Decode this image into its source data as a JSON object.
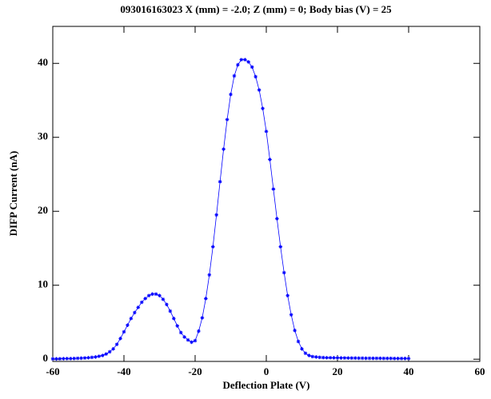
{
  "chart_data": {
    "type": "line",
    "title": "093016163023   X (mm) = -2.0;  Z (mm) = 0;  Body bias (V) = 25",
    "x_label": "Deflection Plate (V)",
    "y_label": "DIFP Current (nA)",
    "x": [
      -60,
      -59,
      -58,
      -57,
      -56,
      -55,
      -54,
      -53,
      -52,
      -51,
      -50,
      -49,
      -48,
      -47,
      -46,
      -45,
      -44,
      -43,
      -42,
      -41,
      -40,
      -39,
      -38,
      -37,
      -36,
      -35,
      -34,
      -33,
      -32,
      -31,
      -30,
      -29,
      -28,
      -27,
      -26,
      -25,
      -24,
      -23,
      -22,
      -21,
      -20,
      -19,
      -18,
      -17,
      -16,
      -15,
      -14,
      -13,
      -12,
      -11,
      -10,
      -9,
      -8,
      -7,
      -6,
      -5,
      -4,
      -3,
      -2,
      -1,
      0,
      1,
      2,
      3,
      4,
      5,
      6,
      7,
      8,
      9,
      10,
      11,
      12,
      13,
      14,
      15,
      16,
      17,
      18,
      19,
      20,
      21,
      22,
      23,
      24,
      25,
      26,
      27,
      28,
      29,
      30,
      31,
      32,
      33,
      34,
      35,
      36,
      37,
      38,
      39,
      40
    ],
    "series": [
      {
        "name": "DIFP",
        "color": "#0000ff",
        "values": [
          0.05,
          0.05,
          0.06,
          0.07,
          0.08,
          0.09,
          0.1,
          0.12,
          0.14,
          0.17,
          0.2,
          0.25,
          0.3,
          0.4,
          0.5,
          0.7,
          1.0,
          1.4,
          2.0,
          2.8,
          3.7,
          4.6,
          5.5,
          6.3,
          7.0,
          7.7,
          8.2,
          8.6,
          8.8,
          8.8,
          8.6,
          8.1,
          7.4,
          6.5,
          5.5,
          4.5,
          3.6,
          3.0,
          2.6,
          2.3,
          2.5,
          3.8,
          5.6,
          8.2,
          11.4,
          15.2,
          19.5,
          24.0,
          28.4,
          32.4,
          35.8,
          38.3,
          39.8,
          40.5,
          40.5,
          40.2,
          39.5,
          38.2,
          36.4,
          33.9,
          30.8,
          27.0,
          23.0,
          19.0,
          15.2,
          11.7,
          8.6,
          6.0,
          3.9,
          2.4,
          1.4,
          0.8,
          0.5,
          0.35,
          0.3,
          0.25,
          0.22,
          0.2,
          0.2,
          0.19,
          0.18,
          0.17,
          0.17,
          0.16,
          0.15,
          0.15,
          0.14,
          0.14,
          0.13,
          0.13,
          0.12,
          0.12,
          0.12,
          0.11,
          0.11,
          0.11,
          0.1,
          0.1,
          0.1,
          0.1,
          0.1
        ]
      }
    ],
    "xlim": [
      -60,
      60
    ],
    "ylim": [
      -0.3,
      45
    ],
    "xticks": [
      -60,
      -40,
      -20,
      0,
      20,
      40,
      60
    ],
    "yticks": [
      0,
      10,
      20,
      30,
      40
    ]
  }
}
